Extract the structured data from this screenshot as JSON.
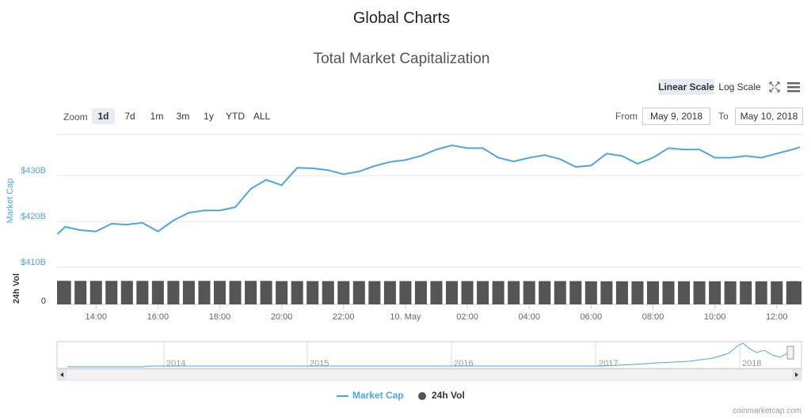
{
  "page": {
    "title": "Global Charts",
    "zoom_label": "Zoom",
    "zoom_buttons": [
      "1d",
      "7d",
      "1m",
      "3m",
      "1y",
      "YTD",
      "ALL"
    ],
    "scale_buttons": [
      "Linear Scale",
      "Log Scale"
    ],
    "from_label": "From",
    "from_value": "May 9, 2018",
    "to_label": "To",
    "to_value": "May 10, 2018",
    "navigator_years": [
      "2014",
      "2015",
      "2016",
      "2017",
      "2018"
    ],
    "credit": "coinmarketcap.com"
  },
  "chart_data": {
    "type": "line",
    "title": "Total Market Capitalization",
    "y_label": "Market Cap",
    "y2_label": "24h Vol",
    "x": [
      12.75,
      13,
      13.5,
      14,
      14.5,
      15,
      15.5,
      16,
      16.5,
      17,
      17.5,
      18,
      18.5,
      19,
      19.5,
      20,
      20.5,
      21,
      21.5,
      22,
      22.5,
      23,
      23.5,
      24,
      24.5,
      25,
      25.5,
      26,
      26.5,
      27,
      27.5,
      28,
      28.5,
      29,
      29.5,
      30,
      30.5,
      31,
      31.5,
      32,
      32.5,
      33,
      33.5,
      34,
      34.5,
      35,
      35.5,
      36,
      36.5,
      36.75
    ],
    "xlim": [
      12.74,
      36.8
    ],
    "xticks": [
      {
        "value": 14,
        "label": "14:00"
      },
      {
        "value": 16,
        "label": "16:00"
      },
      {
        "value": 18,
        "label": "18:00"
      },
      {
        "value": 20,
        "label": "20:00"
      },
      {
        "value": 22,
        "label": "22:00"
      },
      {
        "value": 24,
        "label": "10. May"
      },
      {
        "value": 26,
        "label": "02:00"
      },
      {
        "value": 28,
        "label": "04:00"
      },
      {
        "value": 30,
        "label": "06:00"
      },
      {
        "value": 32,
        "label": "08:00"
      },
      {
        "value": 34,
        "label": "10:00"
      },
      {
        "value": 36,
        "label": "12:00"
      }
    ],
    "ylim": [
      410,
      439
    ],
    "yticks": [
      {
        "value": 410,
        "label": "$410B"
      },
      {
        "value": 420,
        "label": "$420B"
      },
      {
        "value": 430,
        "label": "$430B"
      }
    ],
    "y2lim": [
      0,
      14
    ],
    "y2ticks": [
      0
    ],
    "grid": true,
    "series": [
      {
        "name": "Market Cap",
        "color": "#4ea5e3",
        "values": [
          417.2,
          418.8,
          418.1,
          417.8,
          419.5,
          419.3,
          419.7,
          417.8,
          420.2,
          421.9,
          422.4,
          422.4,
          423.1,
          427.1,
          429.1,
          427.9,
          431.7,
          431.6,
          431.2,
          430.3,
          430.9,
          432.1,
          433.0,
          433.4,
          434.3,
          435.7,
          436.6,
          436.0,
          436.0,
          433.9,
          433.1,
          433.9,
          434.5,
          433.6,
          431.9,
          432.2,
          434.8,
          434.3,
          432.6,
          433.9,
          436.0,
          435.7,
          435.7,
          433.9,
          433.9,
          434.3,
          433.9,
          434.8,
          435.7,
          436.2
        ]
      },
      {
        "name": "24h Vol",
        "color": "#555555",
        "axis": "y2",
        "values": [
          12.6,
          12.6,
          12.6,
          12.6,
          12.6,
          12.6,
          12.6,
          12.6,
          12.6,
          12.6,
          12.6,
          12.6,
          12.6,
          12.6,
          12.6,
          12.5,
          12.5,
          12.5,
          12.5,
          12.5,
          12.5,
          12.5,
          12.5,
          12.5,
          12.5,
          12.5,
          12.5,
          12.5,
          12.5,
          12.5,
          12.5,
          12.5,
          12.5,
          12.5,
          12.5,
          12.4,
          12.4,
          12.4,
          12.4,
          12.4,
          12.4,
          12.4,
          12.4,
          12.4,
          12.4,
          12.4,
          12.4,
          12.4,
          12.4,
          12.4
        ]
      }
    ]
  }
}
